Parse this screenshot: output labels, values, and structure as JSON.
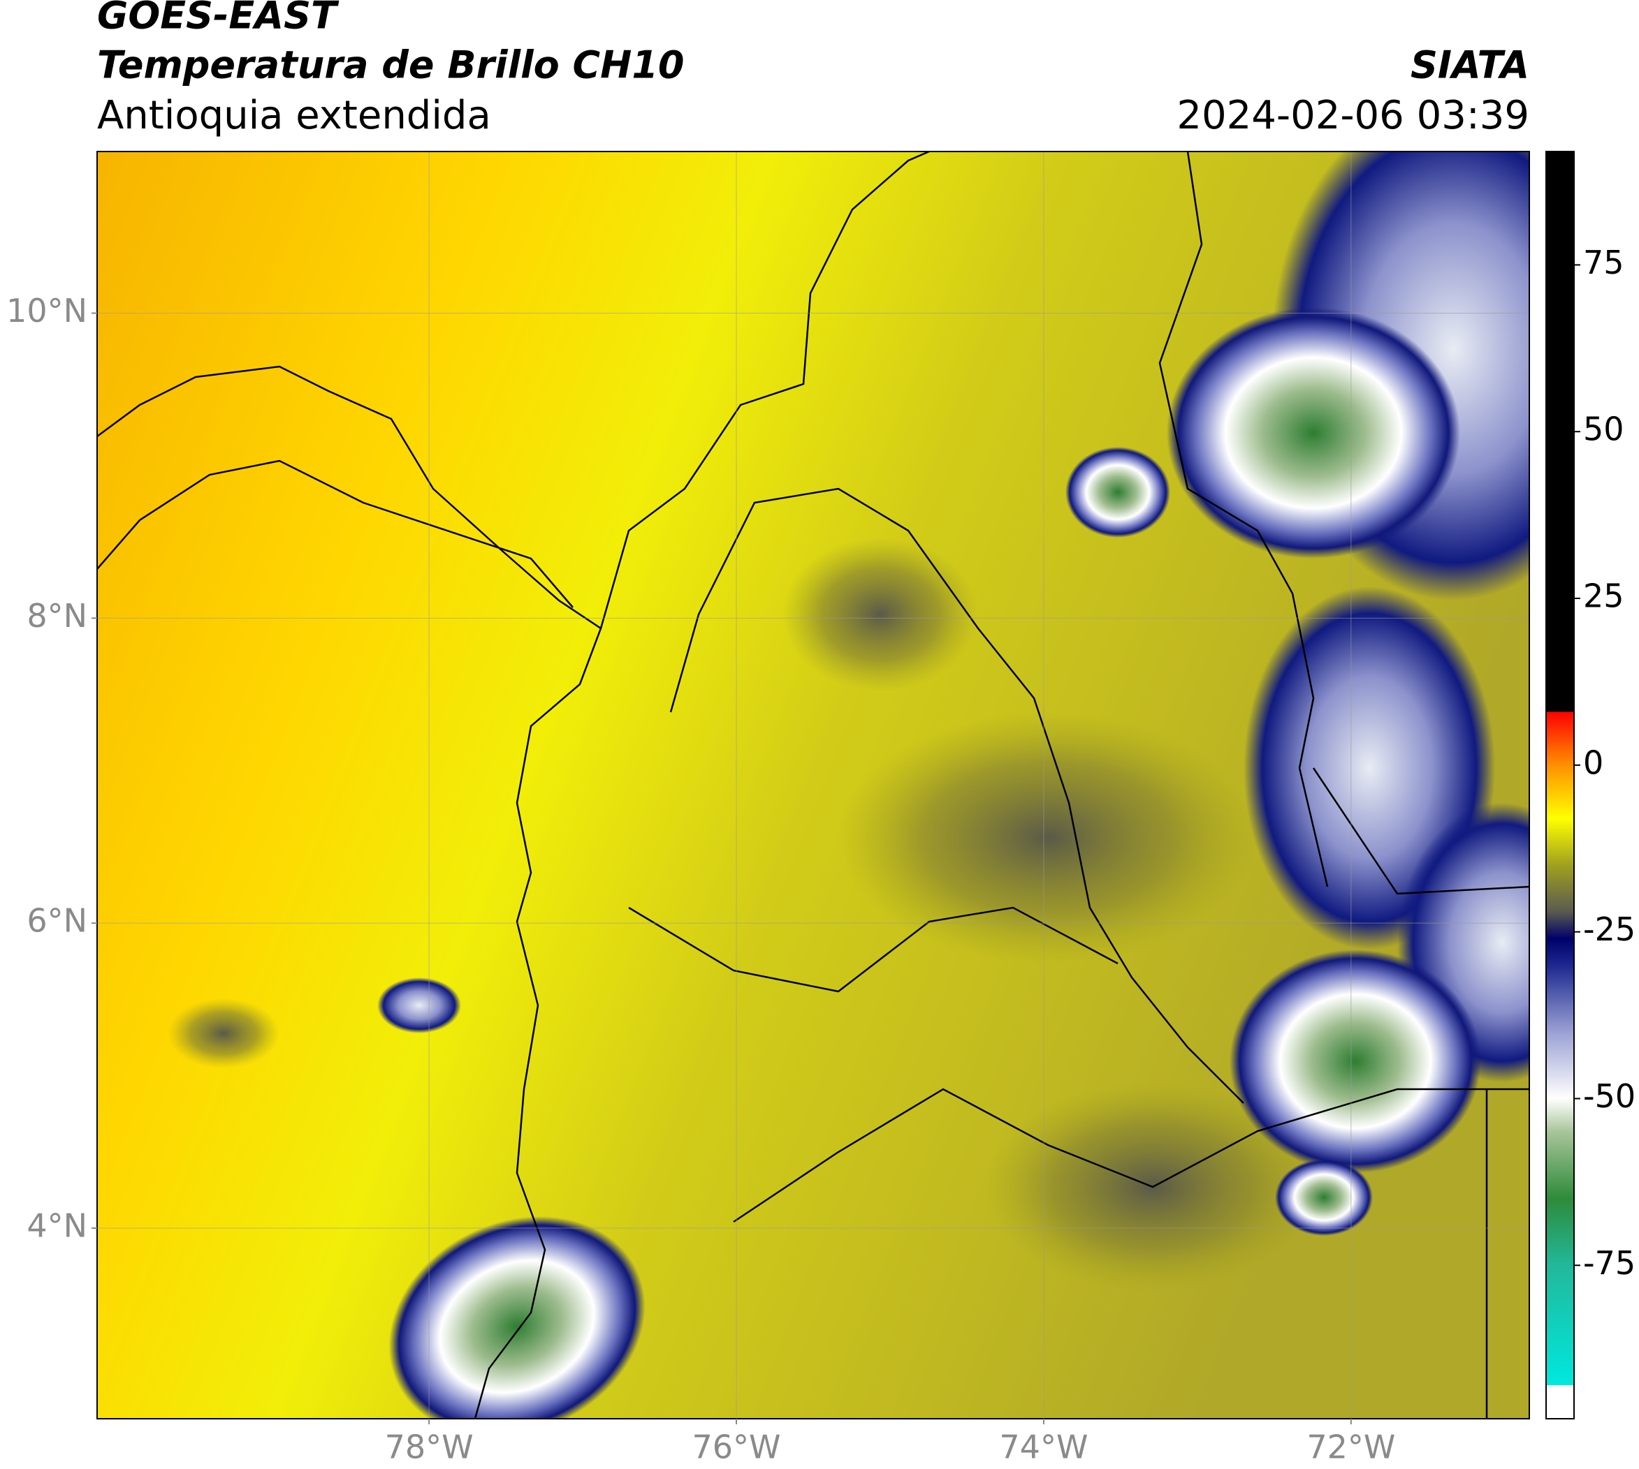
{
  "header": {
    "title": "GOES-EAST",
    "subtitle": "Temperatura de Brillo CH10",
    "region": "Antioquia extendida",
    "source": "SIATA",
    "timestamp": "2024-02-06 03:39"
  },
  "map": {
    "xlim": [
      -80.16,
      -70.84
    ],
    "ylim": [
      2.75,
      11.06
    ],
    "xticks": [
      {
        "value": -78,
        "label": "78°W"
      },
      {
        "value": -76,
        "label": "76°W"
      },
      {
        "value": -74,
        "label": "74°W"
      },
      {
        "value": -72,
        "label": "72°W"
      }
    ],
    "yticks": [
      {
        "value": 10,
        "label": "10°N"
      },
      {
        "value": 8,
        "label": "8°N"
      },
      {
        "value": 6,
        "label": "6°N"
      },
      {
        "value": 4,
        "label": "4°N"
      }
    ],
    "grid": true
  },
  "colorbar": {
    "lim": [
      -98,
      92
    ],
    "ticks": [
      75,
      50,
      25,
      0,
      -25,
      -50,
      -75
    ],
    "stops": [
      {
        "value": -98,
        "color": "#ffffff"
      },
      {
        "value": -93,
        "color": "#ffffff"
      },
      {
        "value": -93,
        "color": "#00e8e0"
      },
      {
        "value": -75,
        "color": "#22b89a"
      },
      {
        "value": -65,
        "color": "#2e8b3a"
      },
      {
        "value": -55,
        "color": "#a8c49a"
      },
      {
        "value": -50,
        "color": "#ffffff"
      },
      {
        "value": -40,
        "color": "#9aa0d4"
      },
      {
        "value": -30,
        "color": "#1c2890"
      },
      {
        "value": -26,
        "color": "#00006a"
      },
      {
        "value": -22,
        "color": "#5a5a50"
      },
      {
        "value": -15,
        "color": "#a0a020"
      },
      {
        "value": -8,
        "color": "#ffff00"
      },
      {
        "value": 0,
        "color": "#ff9000"
      },
      {
        "value": 8,
        "color": "#ff0000"
      },
      {
        "value": 8,
        "color": "#000000"
      },
      {
        "value": 92,
        "color": "#000000"
      }
    ]
  }
}
